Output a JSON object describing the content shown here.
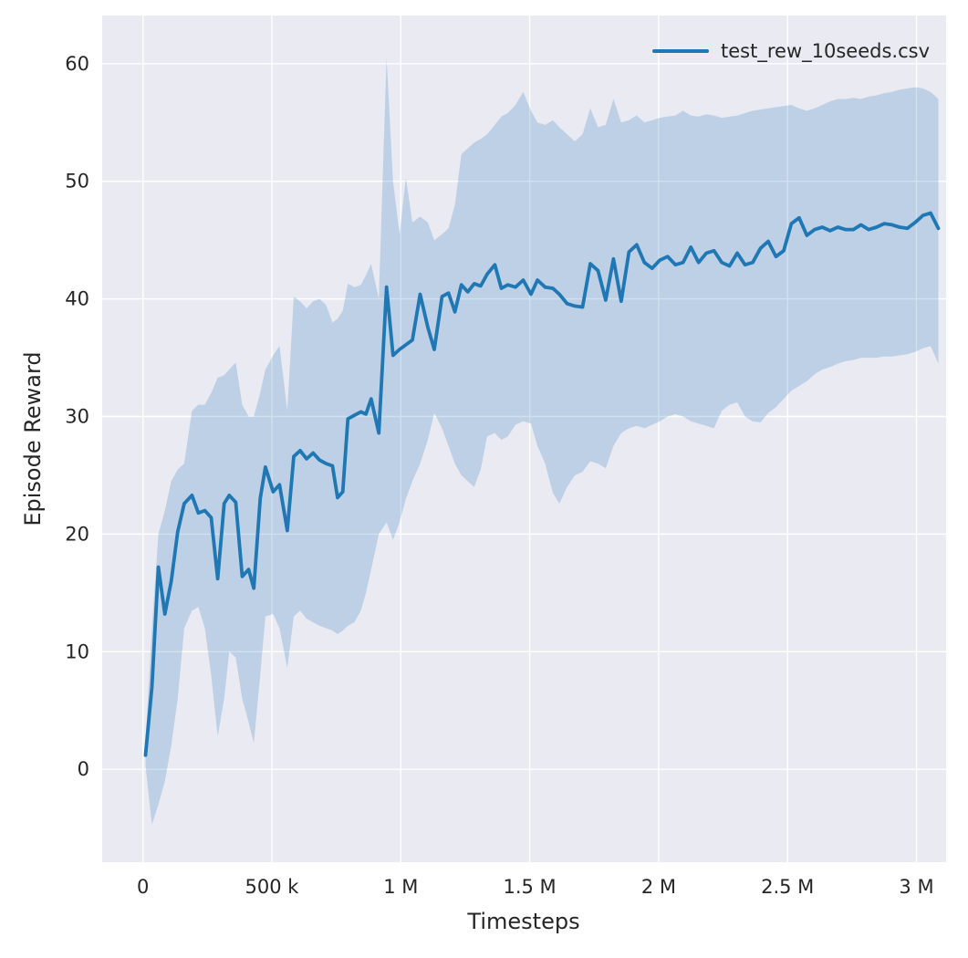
{
  "chart_data": {
    "type": "line",
    "title": "",
    "xlabel": "Timesteps",
    "ylabel": "Episode Reward",
    "legend": [
      {
        "label": "test_rew_10seeds.csv",
        "color": "#1f77b4"
      }
    ],
    "legend_position": "upper right",
    "grid": true,
    "colors": {
      "line": "#1f77b4",
      "plot_background": "#eaeaf2",
      "grid": "#ffffff",
      "text": "#262626"
    },
    "band_opacity": 0.22,
    "xlim": [
      -158000,
      3115000
    ],
    "ylim": [
      -7.9,
      64.1
    ],
    "xticks": [
      {
        "value": 0,
        "label": "0"
      },
      {
        "value": 500000,
        "label": "500 k"
      },
      {
        "value": 1000000,
        "label": "1 M"
      },
      {
        "value": 1500000,
        "label": "1.5 M"
      },
      {
        "value": 2000000,
        "label": "2 M"
      },
      {
        "value": 2500000,
        "label": "2.5 M"
      },
      {
        "value": 3000000,
        "label": "3 M"
      }
    ],
    "yticks": [
      {
        "value": 0,
        "label": "0"
      },
      {
        "value": 10,
        "label": "10"
      },
      {
        "value": 20,
        "label": "20"
      },
      {
        "value": 30,
        "label": "30"
      },
      {
        "value": 40,
        "label": "40"
      },
      {
        "value": 50,
        "label": "50"
      },
      {
        "value": 60,
        "label": "60"
      }
    ],
    "x": [
      10000,
      35000,
      60000,
      85000,
      110000,
      135000,
      160000,
      190000,
      215000,
      240000,
      265000,
      290000,
      315000,
      335000,
      360000,
      385000,
      410000,
      430000,
      455000,
      475000,
      505000,
      530000,
      560000,
      585000,
      610000,
      635000,
      660000,
      685000,
      710000,
      735000,
      755000,
      775000,
      795000,
      820000,
      845000,
      865000,
      885000,
      915000,
      945000,
      970000,
      995000,
      1020000,
      1045000,
      1075000,
      1105000,
      1130000,
      1160000,
      1185000,
      1210000,
      1235000,
      1260000,
      1285000,
      1310000,
      1335000,
      1365000,
      1390000,
      1415000,
      1445000,
      1475000,
      1505000,
      1530000,
      1560000,
      1590000,
      1615000,
      1645000,
      1675000,
      1705000,
      1735000,
      1765000,
      1795000,
      1825000,
      1855000,
      1885000,
      1915000,
      1945000,
      1975000,
      2005000,
      2035000,
      2065000,
      2095000,
      2125000,
      2155000,
      2185000,
      2215000,
      2245000,
      2275000,
      2305000,
      2335000,
      2365000,
      2395000,
      2425000,
      2455000,
      2485000,
      2515000,
      2545000,
      2575000,
      2605000,
      2635000,
      2665000,
      2695000,
      2725000,
      2755000,
      2785000,
      2815000,
      2845000,
      2875000,
      2905000,
      2935000,
      2965000,
      2995000,
      3025000,
      3055000,
      3085000
    ],
    "series": [
      {
        "name": "mean",
        "values": [
          1.2,
          7.0,
          17.2,
          13.2,
          16.0,
          20.2,
          22.6,
          23.3,
          21.8,
          22.0,
          21.4,
          16.2,
          22.6,
          23.3,
          22.7,
          16.4,
          17.0,
          15.4,
          23.0,
          25.7,
          23.6,
          24.2,
          20.3,
          26.6,
          27.1,
          26.4,
          26.9,
          26.3,
          26.0,
          25.8,
          23.1,
          23.6,
          29.8,
          30.1,
          30.4,
          30.2,
          31.5,
          28.6,
          41.0,
          35.2,
          35.7,
          36.1,
          36.5,
          40.4,
          37.6,
          35.7,
          40.2,
          40.5,
          38.9,
          41.2,
          40.6,
          41.3,
          41.1,
          42.1,
          42.9,
          40.9,
          41.2,
          41.0,
          41.6,
          40.4,
          41.6,
          41.0,
          40.9,
          40.4,
          39.6,
          39.4,
          39.3,
          43.0,
          42.4,
          39.9,
          43.4,
          39.8,
          44.0,
          44.6,
          43.1,
          42.6,
          43.3,
          43.6,
          42.9,
          43.1,
          44.4,
          43.1,
          43.9,
          44.1,
          43.1,
          42.8,
          43.9,
          42.9,
          43.1,
          44.3,
          44.9,
          43.6,
          44.1,
          46.4,
          46.9,
          45.4,
          45.9,
          46.1,
          45.8,
          46.1,
          45.9,
          45.9,
          46.3,
          45.9,
          46.1,
          46.4,
          46.3,
          46.1,
          46.0,
          46.5,
          47.1,
          47.3,
          46.0
        ]
      },
      {
        "name": "lower_band",
        "values": [
          0.3,
          -4.7,
          -3.0,
          -1.0,
          2.0,
          6.0,
          12.0,
          13.5,
          13.8,
          12.0,
          8.0,
          2.8,
          6.0,
          10.0,
          9.5,
          6.0,
          4.0,
          2.2,
          8.0,
          13.0,
          13.2,
          12.0,
          8.6,
          13.0,
          13.5,
          12.8,
          12.5,
          12.2,
          12.0,
          11.8,
          11.5,
          11.8,
          12.2,
          12.5,
          13.5,
          15.0,
          17.0,
          20.0,
          21.0,
          19.5,
          21.0,
          23.0,
          24.5,
          26.0,
          28.0,
          30.3,
          29.0,
          27.5,
          26.0,
          25.0,
          24.5,
          24.0,
          25.5,
          28.3,
          28.6,
          28.0,
          28.3,
          29.3,
          29.6,
          29.4,
          27.5,
          26.0,
          23.5,
          22.6,
          24.0,
          25.0,
          25.3,
          26.2,
          26.0,
          25.6,
          27.5,
          28.6,
          29.0,
          29.2,
          29.0,
          29.3,
          29.6,
          30.0,
          30.2,
          30.0,
          29.6,
          29.4,
          29.2,
          29.0,
          30.5,
          31.0,
          31.2,
          30.0,
          29.6,
          29.5,
          30.3,
          30.8,
          31.5,
          32.2,
          32.6,
          33.0,
          33.6,
          34.0,
          34.2,
          34.5,
          34.7,
          34.8,
          35.0,
          35.0,
          35.0,
          35.1,
          35.1,
          35.2,
          35.3,
          35.5,
          35.8,
          36.0,
          34.5
        ]
      },
      {
        "name": "upper_band",
        "values": [
          2.5,
          12.0,
          20.0,
          22.0,
          24.5,
          25.5,
          26.0,
          30.5,
          31.0,
          31.0,
          32.0,
          33.3,
          33.5,
          34.0,
          34.6,
          31.0,
          30.0,
          30.0,
          32.0,
          34.0,
          35.2,
          36.0,
          30.5,
          40.2,
          39.8,
          39.2,
          39.8,
          40.0,
          39.5,
          38.0,
          38.3,
          39.0,
          41.3,
          41.0,
          41.2,
          42.0,
          43.0,
          40.0,
          60.5,
          50.0,
          45.5,
          50.3,
          46.5,
          47.0,
          46.5,
          45.0,
          45.5,
          46.0,
          48.0,
          52.3,
          52.8,
          53.3,
          53.6,
          54.0,
          54.8,
          55.5,
          55.8,
          56.5,
          57.6,
          56.0,
          55.0,
          54.8,
          55.2,
          54.6,
          54.0,
          53.4,
          54.0,
          56.2,
          54.6,
          54.8,
          57.0,
          55.0,
          55.2,
          55.6,
          55.0,
          55.2,
          55.4,
          55.5,
          55.6,
          56.0,
          55.6,
          55.5,
          55.7,
          55.6,
          55.4,
          55.5,
          55.6,
          55.8,
          56.0,
          56.1,
          56.2,
          56.3,
          56.4,
          56.5,
          56.2,
          56.0,
          56.2,
          56.5,
          56.8,
          57.0,
          57.0,
          57.1,
          57.0,
          57.2,
          57.3,
          57.5,
          57.6,
          57.8,
          57.9,
          58.0,
          57.9,
          57.6,
          57.0
        ]
      }
    ]
  }
}
